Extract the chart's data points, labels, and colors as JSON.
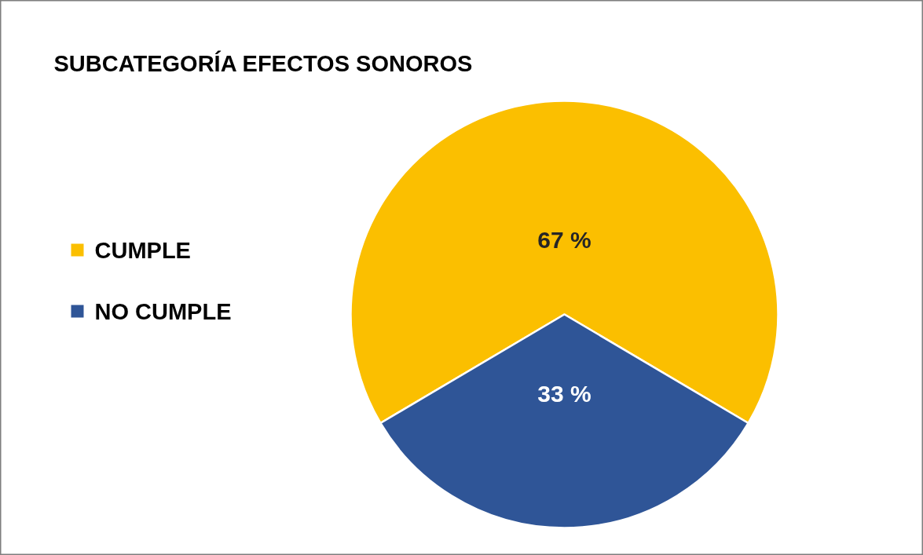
{
  "chart_data": {
    "type": "pie",
    "title": "SUBCATEGORÍA EFECTOS SONOROS",
    "categories": [
      "CUMPLE",
      "NO CUMPLE"
    ],
    "values": [
      67,
      33
    ],
    "colors": [
      "#fbbf00",
      "#2f5597"
    ],
    "value_labels": [
      "67 %",
      "33 %"
    ],
    "legend": "left"
  }
}
